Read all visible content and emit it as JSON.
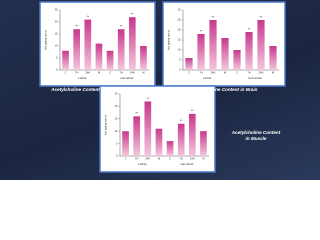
{
  "chart_data": [
    {
      "type": "bar",
      "title": "Acetylcholine Content in Thoracic Ganglia",
      "y_label": "Ach µg/mg wet wt",
      "categories": [
        "C",
        "7H",
        "24H",
        "M",
        "C",
        "7H",
        "24H",
        "M"
      ],
      "values": [
        8,
        17,
        21,
        11,
        8,
        17,
        22,
        10
      ],
      "markers": [
        null,
        "**",
        "**",
        null,
        null,
        "**",
        "**",
        null
      ],
      "x_groups": [
        "Lethal",
        "sub-lethal"
      ],
      "color": "#c8388c",
      "ylim": [
        0,
        25
      ],
      "yticks": [
        0,
        5,
        10,
        15,
        20,
        25
      ]
    },
    {
      "type": "bar",
      "title": "Acetylcholine Content in Brain",
      "y_label": "Ach µg/mg wet wt",
      "categories": [
        "C",
        "7H",
        "24H",
        "M",
        "C",
        "7H",
        "24H",
        "M"
      ],
      "values": [
        6,
        18,
        25,
        16,
        10,
        19,
        25,
        12
      ],
      "markers": [
        null,
        "**",
        "**",
        null,
        null,
        "**",
        "**",
        null
      ],
      "x_groups": [
        "Lethal",
        "Sub-lethal"
      ],
      "color": "#c8388c",
      "ylim": [
        0,
        30
      ],
      "yticks": [
        0,
        5,
        10,
        15,
        20,
        25,
        30
      ]
    },
    {
      "type": "bar",
      "title": "Acetylcholine Content in Muscle",
      "y_label": "Ach µg/mg wet wt",
      "categories": [
        "C",
        "7H",
        "24H",
        "M",
        "C",
        "7H",
        "24H",
        "M"
      ],
      "values": [
        10,
        16,
        22,
        11,
        6,
        13,
        17,
        10
      ],
      "markers": [
        null,
        "**",
        "**",
        null,
        null,
        "**",
        "**",
        null
      ],
      "x_groups": [
        "Lethal",
        "sub-lethal"
      ],
      "color": "#c8388c",
      "ylim": [
        0,
        25
      ],
      "yticks": [
        0,
        5,
        10,
        15,
        20,
        25
      ]
    }
  ]
}
